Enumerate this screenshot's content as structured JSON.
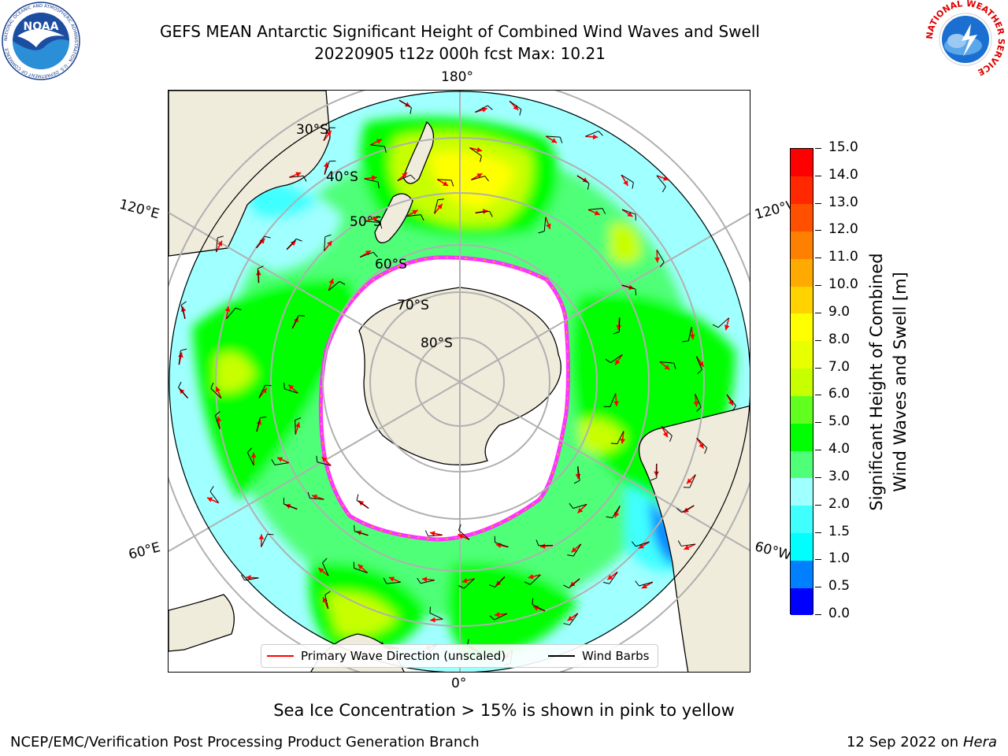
{
  "header": {
    "title_line1": "GEFS MEAN Antarctic Significant Height of Combined Wind Waves and Swell",
    "title_line2": "20220905 t12z 000h fcst   Max: 10.21"
  },
  "logos": {
    "noaa_text": "NOAA",
    "noaa_ring_text": "NATIONAL OCEANIC AND ATMOSPHERIC ADMINISTRATION · U.S. DEPARTMENT OF COMMERCE",
    "nws_ring_text": "NATIONAL WEATHER SERVICE"
  },
  "map": {
    "projection": "south-polar-stereographic",
    "longitude_labels": {
      "top": "180°",
      "bottom": "0°",
      "left_upper": "120°E",
      "left_lower": "60°E",
      "right_upper": "120°W",
      "right_lower": "60°W"
    },
    "latitude_labels": [
      "30°S",
      "40°S",
      "50°S",
      "60°S",
      "70°S",
      "80°S"
    ],
    "colors": {
      "land": "#efecdc",
      "ice_edge": "#ff33ff",
      "gridline": "#b0b0b0",
      "wave_arrow": "#ff0000",
      "wind_barb": "#000000"
    }
  },
  "colorbar": {
    "title_line1": "Significant Height of Combined",
    "title_line2": "Wind Waves and Swell [m]",
    "ticks": [
      "0.0",
      "0.5",
      "1.0",
      "1.5",
      "2.0",
      "3.0",
      "4.0",
      "5.0",
      "6.0",
      "7.0",
      "8.0",
      "9.0",
      "10.0",
      "11.0",
      "12.0",
      "13.0",
      "14.0",
      "15.0"
    ],
    "colors": [
      "#0000ff",
      "#0080ff",
      "#00ffff",
      "#40ffff",
      "#a0ffff",
      "#50ff78",
      "#00ff00",
      "#60ff20",
      "#c8ff00",
      "#e8ff00",
      "#ffff00",
      "#ffd200",
      "#ffaa00",
      "#ff8000",
      "#ff5000",
      "#ff2800",
      "#ff0000"
    ]
  },
  "legend": {
    "wave_label": "Primary Wave Direction (unscaled)",
    "wind_label": "Wind Barbs"
  },
  "footer": {
    "sea_ice_note": "Sea Ice Concentration > 15% is shown in pink to yellow",
    "credit": "NCEP/EMC/Verification Post Processing Product Generation Branch",
    "date": "12 Sep 2022 on",
    "machine": "Hera"
  }
}
